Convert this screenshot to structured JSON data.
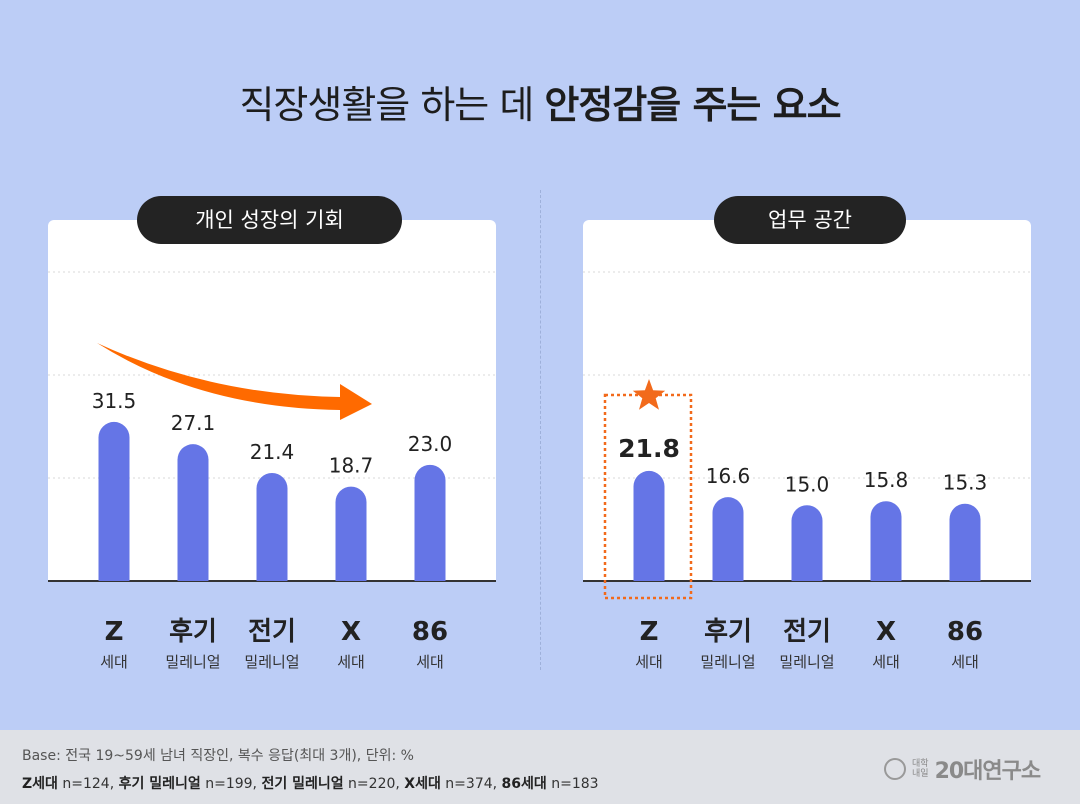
{
  "title": {
    "regular": "직장생활을 하는 데 ",
    "bold": "안정감을 주는 요소"
  },
  "colors": {
    "bar": "#6575e6",
    "arrow": "#ff6a00",
    "highlight": "#f26a1b",
    "background": "#bccdf6"
  },
  "chart_data": [
    {
      "type": "bar",
      "title": "개인 성장의 기회",
      "categories": [
        "Z",
        "후기",
        "전기",
        "X",
        "86"
      ],
      "subcategories": [
        "세대",
        "밀레니얼",
        "밀레니얼",
        "세대",
        "세대"
      ],
      "values": [
        31.5,
        27.1,
        21.4,
        18.7,
        23.0
      ],
      "value_labels": [
        "31.5",
        "27.1",
        "21.4",
        "18.7",
        "23.0"
      ],
      "ylim": [
        0,
        35
      ],
      "grid": "dotted",
      "annotation": "decreasing-trend-arrow"
    },
    {
      "type": "bar",
      "title": "업무 공간",
      "categories": [
        "Z",
        "후기",
        "전기",
        "X",
        "86"
      ],
      "subcategories": [
        "세대",
        "밀레니얼",
        "밀레니얼",
        "세대",
        "세대"
      ],
      "values": [
        21.8,
        16.6,
        15.0,
        15.8,
        15.3
      ],
      "value_labels": [
        "21.8",
        "16.6",
        "15.0",
        "15.8",
        "15.3"
      ],
      "ylim": [
        0,
        35
      ],
      "grid": "dotted",
      "highlight_index": 0,
      "annotation": "star-icon"
    }
  ],
  "footer": {
    "base": "Base: 전국 19~59세 남녀 직장인, 복수 응답(최대 3개), 단위: %",
    "samples": [
      {
        "label": "Z세대",
        "n": " n=124, "
      },
      {
        "label": "후기 밀레니얼",
        "n": " n=199, "
      },
      {
        "label": "전기 밀레니얼",
        "n": " n=220, "
      },
      {
        "label": "X세대",
        "n": " n=374, "
      },
      {
        "label": "86세대",
        "n": " n=183"
      }
    ],
    "logo_small_1": "대학",
    "logo_small_2": "내일",
    "logo_big": "20대연구소"
  }
}
